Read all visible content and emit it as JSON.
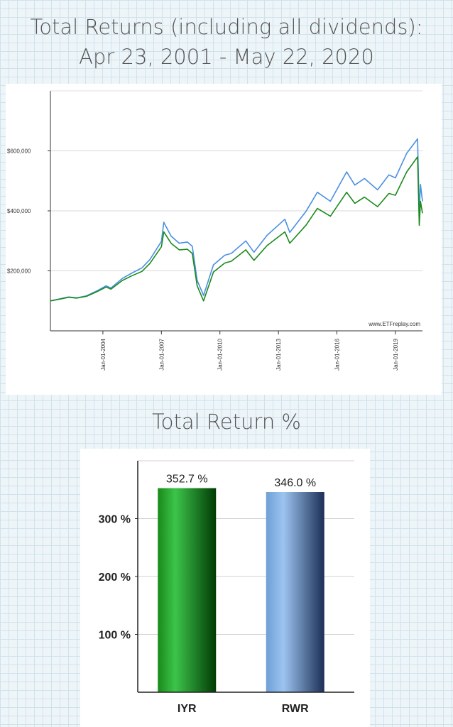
{
  "titles": {
    "main_line1": "Total Returns (including all dividends):",
    "main_line2": "Apr 23, 2001 - May 22, 2020",
    "bar_title": "Total Return %"
  },
  "chart_data": [
    {
      "type": "line",
      "watermark": "www.ETFreplay.com",
      "x_range": [
        "2001-04-23",
        "2020-05-22"
      ],
      "ylim": [
        0,
        800000
      ],
      "y_ticks": [
        {
          "value": 200000,
          "label": "$200,000"
        },
        {
          "value": 400000,
          "label": "$400,000"
        },
        {
          "value": 600000,
          "label": "$600,000"
        }
      ],
      "x_ticks": [
        {
          "value": "2004-01-01",
          "label": "Jan-01-2004"
        },
        {
          "value": "2007-01-01",
          "label": "Jan-01-2007"
        },
        {
          "value": "2010-01-01",
          "label": "Jan-01-2010"
        },
        {
          "value": "2013-01-01",
          "label": "Jan-01-2013"
        },
        {
          "value": "2016-01-01",
          "label": "Jan-01-2016"
        },
        {
          "value": "2019-01-01",
          "label": "Jan-01-2019"
        }
      ],
      "grid": true,
      "series": [
        {
          "color": "#4a90e2",
          "points": [
            [
              "2001-04-23",
              100000
            ],
            [
              "2001-10-01",
              106000
            ],
            [
              "2002-04-01",
              113000
            ],
            [
              "2002-09-01",
              110000
            ],
            [
              "2003-03-01",
              117000
            ],
            [
              "2003-10-01",
              135000
            ],
            [
              "2004-03-01",
              150000
            ],
            [
              "2004-06-01",
              143000
            ],
            [
              "2005-01-01",
              175000
            ],
            [
              "2005-07-01",
              193000
            ],
            [
              "2006-01-01",
              210000
            ],
            [
              "2006-06-01",
              238000
            ],
            [
              "2007-01-01",
              298000
            ],
            [
              "2007-02-15",
              362000
            ],
            [
              "2007-07-01",
              316000
            ],
            [
              "2007-12-01",
              292000
            ],
            [
              "2008-05-01",
              296000
            ],
            [
              "2008-08-01",
              282000
            ],
            [
              "2008-11-01",
              168000
            ],
            [
              "2009-03-01",
              118000
            ],
            [
              "2009-09-01",
              220000
            ],
            [
              "2010-04-01",
              252000
            ],
            [
              "2010-08-01",
              258000
            ],
            [
              "2011-05-01",
              300000
            ],
            [
              "2011-10-01",
              262000
            ],
            [
              "2012-06-01",
              318000
            ],
            [
              "2013-05-01",
              372000
            ],
            [
              "2013-08-01",
              328000
            ],
            [
              "2014-06-01",
              398000
            ],
            [
              "2015-01-01",
              462000
            ],
            [
              "2015-09-01",
              432000
            ],
            [
              "2016-07-01",
              530000
            ],
            [
              "2016-12-01",
              486000
            ],
            [
              "2017-06-01",
              508000
            ],
            [
              "2018-02-01",
              470000
            ],
            [
              "2018-09-01",
              520000
            ],
            [
              "2019-01-01",
              510000
            ],
            [
              "2019-08-01",
              592000
            ],
            [
              "2020-02-20",
              640000
            ],
            [
              "2020-03-23",
              398000
            ],
            [
              "2020-04-15",
              488000
            ],
            [
              "2020-05-22",
              432000
            ]
          ]
        },
        {
          "color": "#1a8a1a",
          "points": [
            [
              "2001-04-23",
              100000
            ],
            [
              "2001-10-01",
              105000
            ],
            [
              "2002-04-01",
              112000
            ],
            [
              "2002-09-01",
              109000
            ],
            [
              "2003-03-01",
              115000
            ],
            [
              "2003-10-01",
              132000
            ],
            [
              "2004-03-01",
              146000
            ],
            [
              "2004-06-01",
              139000
            ],
            [
              "2005-01-01",
              168000
            ],
            [
              "2005-07-01",
              184000
            ],
            [
              "2006-01-01",
              198000
            ],
            [
              "2006-06-01",
              225000
            ],
            [
              "2007-01-01",
              280000
            ],
            [
              "2007-02-15",
              330000
            ],
            [
              "2007-07-01",
              292000
            ],
            [
              "2007-12-01",
              270000
            ],
            [
              "2008-05-01",
              272000
            ],
            [
              "2008-08-01",
              258000
            ],
            [
              "2008-11-01",
              150000
            ],
            [
              "2009-03-01",
              100000
            ],
            [
              "2009-09-01",
              196000
            ],
            [
              "2010-04-01",
              226000
            ],
            [
              "2010-08-01",
              232000
            ],
            [
              "2011-05-01",
              270000
            ],
            [
              "2011-10-01",
              235000
            ],
            [
              "2012-06-01",
              284000
            ],
            [
              "2013-05-01",
              330000
            ],
            [
              "2013-08-01",
              292000
            ],
            [
              "2014-06-01",
              352000
            ],
            [
              "2015-01-01",
              408000
            ],
            [
              "2015-09-01",
              382000
            ],
            [
              "2016-07-01",
              462000
            ],
            [
              "2016-12-01",
              425000
            ],
            [
              "2017-06-01",
              446000
            ],
            [
              "2018-02-01",
              414000
            ],
            [
              "2018-09-01",
              458000
            ],
            [
              "2019-01-01",
              452000
            ],
            [
              "2019-08-01",
              530000
            ],
            [
              "2020-02-20",
              580000
            ],
            [
              "2020-03-23",
              352000
            ],
            [
              "2020-04-15",
              432000
            ],
            [
              "2020-05-22",
              392000
            ]
          ]
        }
      ]
    },
    {
      "type": "bar",
      "categories": [
        "IYR",
        "RWR"
      ],
      "values": [
        352.7,
        346.0
      ],
      "value_labels": [
        "352.7 %",
        "346.0 %"
      ],
      "colors": [
        "#1a8a1a",
        "#6f9fd6"
      ],
      "ylim": [
        0,
        400
      ],
      "y_ticks": [
        {
          "value": 100,
          "label": "100 %"
        },
        {
          "value": 200,
          "label": "200 %"
        },
        {
          "value": 300,
          "label": "300 %"
        }
      ],
      "grid": true
    }
  ]
}
